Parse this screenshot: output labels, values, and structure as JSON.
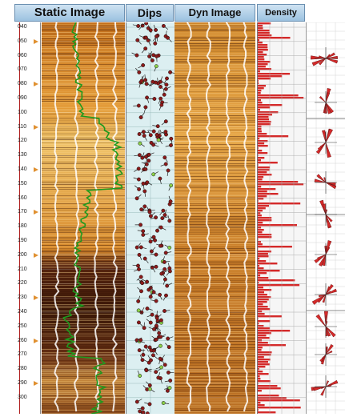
{
  "headers": {
    "static_image": "Static Image",
    "dips": "Dips",
    "dyn_image": "Dyn Image",
    "density": "Density"
  },
  "depth_axis": {
    "labels": [
      "1040",
      "1050",
      "1060",
      "1070",
      "1080",
      "1090",
      "1100",
      "1110",
      "1120",
      "1130",
      "1140",
      "1150",
      "1160",
      "1170",
      "1180",
      "1190",
      "1200",
      "1210",
      "1220",
      "1230",
      "1240",
      "1250",
      "1260",
      "1270",
      "1280",
      "1290",
      "1300"
    ],
    "display_labels": [
      "040",
      "050",
      "060",
      "070",
      "080",
      "090",
      "100",
      "110",
      "120",
      "130",
      "140",
      "150",
      "160",
      "170",
      "180",
      "190",
      "200",
      "210",
      "220",
      "230",
      "240",
      "250",
      "260",
      "270",
      "280",
      "290",
      "300"
    ]
  },
  "colors": {
    "gamma_curve": "#1e9a1e",
    "dip_tadpole": "#8b1a1a",
    "density_fill": "#d42a2a",
    "rose_fill": "#d42a2a",
    "header_bg": "#a9cbe6",
    "dips_bg": "#dceff1",
    "depth_marker": "#e09030"
  }
}
